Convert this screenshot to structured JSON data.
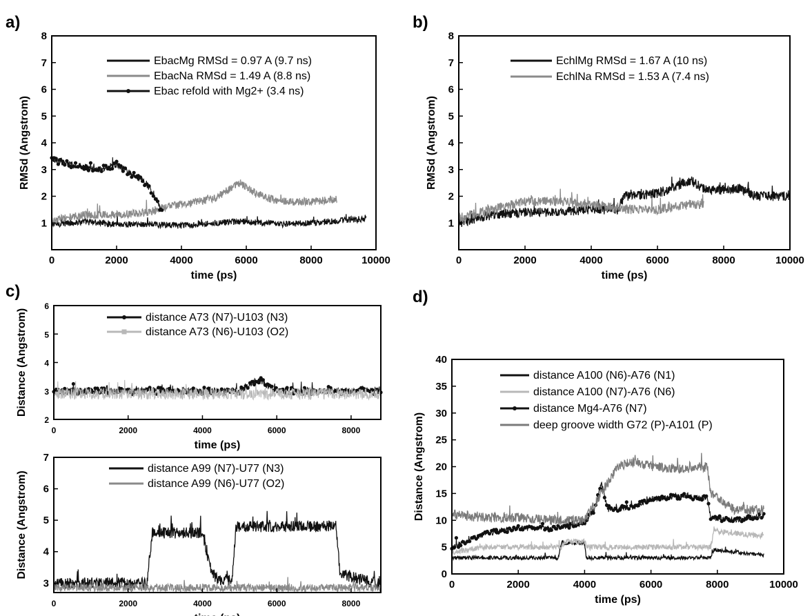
{
  "chart_data": [
    {
      "id": "a",
      "panel_label": "a)",
      "type": "line",
      "xlabel": "time (ps)",
      "ylabel": "RMSd (Angstrom)",
      "xlim": [
        0,
        10000
      ],
      "ylim": [
        0,
        8
      ],
      "xticks": [
        0,
        2000,
        4000,
        6000,
        8000,
        10000
      ],
      "yticks": [
        1,
        2,
        3,
        4,
        5,
        6,
        7,
        8
      ],
      "legend_position": "top-center",
      "series": [
        {
          "name": "EbacMg RMSd = 0.97 A   (9.7 ns)",
          "color": "#111111",
          "marker": "none",
          "noise": 0.12,
          "points": [
            [
              0,
              0.95
            ],
            [
              1000,
              1.05
            ],
            [
              2000,
              0.95
            ],
            [
              3000,
              0.95
            ],
            [
              4000,
              0.9
            ],
            [
              5000,
              1.0
            ],
            [
              6000,
              1.05
            ],
            [
              7000,
              0.95
            ],
            [
              8000,
              1.0
            ],
            [
              9000,
              1.1
            ],
            [
              9700,
              1.15
            ]
          ]
        },
        {
          "name": "EbacNa RMSd = 1.49 A (8.8 ns)",
          "color": "#8a8a8a",
          "marker": "none",
          "noise": 0.15,
          "points": [
            [
              0,
              1.1
            ],
            [
              1000,
              1.3
            ],
            [
              2000,
              1.3
            ],
            [
              3000,
              1.4
            ],
            [
              3500,
              1.6
            ],
            [
              4000,
              1.7
            ],
            [
              5000,
              1.9
            ],
            [
              5800,
              2.5
            ],
            [
              6300,
              2.1
            ],
            [
              7000,
              1.8
            ],
            [
              8000,
              1.8
            ],
            [
              8800,
              1.9
            ]
          ]
        },
        {
          "name": "Ebac refold with Mg2+  (3.4 ns)",
          "color": "#111111",
          "marker": "dot",
          "noise": 0.12,
          "points": [
            [
              0,
              3.4
            ],
            [
              500,
              3.2
            ],
            [
              1000,
              3.1
            ],
            [
              1500,
              3.0
            ],
            [
              2000,
              3.2
            ],
            [
              2500,
              2.8
            ],
            [
              2900,
              2.5
            ],
            [
              3200,
              2.0
            ],
            [
              3400,
              1.4
            ]
          ]
        }
      ]
    },
    {
      "id": "b",
      "panel_label": "b)",
      "type": "line",
      "xlabel": "time (ps)",
      "ylabel": "RMSd (Angstrom)",
      "xlim": [
        0,
        10000
      ],
      "ylim": [
        0,
        8
      ],
      "xticks": [
        0,
        2000,
        4000,
        6000,
        8000,
        10000
      ],
      "yticks": [
        1,
        2,
        3,
        4,
        5,
        6,
        7,
        8
      ],
      "legend_position": "top-center",
      "series": [
        {
          "name": "EchlMg RMSd = 1.67 A (10 ns)",
          "color": "#111111",
          "marker": "none",
          "noise": 0.18,
          "points": [
            [
              0,
              1.0
            ],
            [
              1000,
              1.3
            ],
            [
              2000,
              1.4
            ],
            [
              3000,
              1.4
            ],
            [
              4000,
              1.5
            ],
            [
              4800,
              1.5
            ],
            [
              5000,
              2.0
            ],
            [
              6000,
              2.1
            ],
            [
              7000,
              2.6
            ],
            [
              7500,
              2.2
            ],
            [
              8500,
              2.3
            ],
            [
              9000,
              2.0
            ],
            [
              10000,
              2.0
            ]
          ]
        },
        {
          "name": "EchlNa RMSd = 1.53 A (7.4 ns)",
          "color": "#8a8a8a",
          "marker": "none",
          "noise": 0.18,
          "points": [
            [
              0,
              1.2
            ],
            [
              1000,
              1.5
            ],
            [
              2000,
              1.8
            ],
            [
              3000,
              1.8
            ],
            [
              4000,
              1.7
            ],
            [
              5000,
              1.5
            ],
            [
              6000,
              1.5
            ],
            [
              7000,
              1.7
            ],
            [
              7400,
              1.7
            ]
          ]
        }
      ]
    },
    {
      "id": "c-top",
      "panel_label": "c)",
      "type": "line",
      "xlabel": "time (ps)",
      "ylabel": "Distance (Angstrom)",
      "xlim": [
        0,
        8800
      ],
      "ylim": [
        2,
        6
      ],
      "xticks": [
        0,
        2000,
        4000,
        6000,
        8000
      ],
      "yticks": [
        2,
        3,
        4,
        5,
        6
      ],
      "legend_position": "top-center",
      "series": [
        {
          "name": "distance A73 (N7)-U103 (N3)",
          "color": "#111111",
          "marker": "dot",
          "noise": 0.12,
          "points": [
            [
              0,
              3.0
            ],
            [
              1000,
              3.0
            ],
            [
              2000,
              3.0
            ],
            [
              3000,
              3.0
            ],
            [
              4000,
              3.0
            ],
            [
              5000,
              3.0
            ],
            [
              5500,
              3.4
            ],
            [
              6000,
              3.0
            ],
            [
              7000,
              3.0
            ],
            [
              8000,
              3.0
            ],
            [
              8800,
              3.0
            ]
          ]
        },
        {
          "name": "distance A73 (N6)-U103 (O2)",
          "color": "#b8b8b8",
          "marker": "square",
          "noise": 0.2,
          "points": [
            [
              0,
              2.9
            ],
            [
              1000,
              2.9
            ],
            [
              2000,
              2.9
            ],
            [
              3000,
              2.9
            ],
            [
              4000,
              2.9
            ],
            [
              5000,
              2.9
            ],
            [
              6000,
              2.9
            ],
            [
              7000,
              2.9
            ],
            [
              8000,
              2.9
            ],
            [
              8800,
              2.9
            ]
          ]
        }
      ]
    },
    {
      "id": "c-bottom",
      "panel_label": "",
      "type": "line",
      "xlabel": "time (ps)",
      "ylabel": "Distance (Angstrom)",
      "xlim": [
        0,
        8800
      ],
      "ylim": [
        2.7,
        7
      ],
      "xticks": [
        0,
        2000,
        4000,
        6000,
        8000
      ],
      "yticks": [
        3,
        4,
        5,
        6,
        7
      ],
      "legend_position": "top-center",
      "series": [
        {
          "name": "distance A99 (N7)-U77 (N3)",
          "color": "#111111",
          "marker": "none",
          "noise": 0.18,
          "points": [
            [
              0,
              3.0
            ],
            [
              2500,
              3.0
            ],
            [
              2650,
              4.6
            ],
            [
              4000,
              4.6
            ],
            [
              4200,
              3.5
            ],
            [
              4400,
              3.1
            ],
            [
              4800,
              3.1
            ],
            [
              4900,
              4.8
            ],
            [
              7600,
              4.8
            ],
            [
              7700,
              3.3
            ],
            [
              8800,
              2.95
            ]
          ]
        },
        {
          "name": "distance A99 (N6)-U77 (O2)",
          "color": "#8a8a8a",
          "marker": "none",
          "noise": 0.12,
          "points": [
            [
              0,
              2.85
            ],
            [
              2000,
              2.85
            ],
            [
              4000,
              2.85
            ],
            [
              6000,
              2.85
            ],
            [
              8000,
              2.85
            ],
            [
              8800,
              2.85
            ]
          ]
        }
      ]
    },
    {
      "id": "d",
      "panel_label": "d)",
      "type": "line",
      "xlabel": "time (ps)",
      "ylabel": "Distance (Angstrom)",
      "xlim": [
        0,
        10000
      ],
      "ylim": [
        0,
        40
      ],
      "xticks": [
        0,
        2000,
        4000,
        6000,
        8000,
        10000
      ],
      "yticks": [
        0,
        5,
        10,
        15,
        20,
        25,
        30,
        35,
        40
      ],
      "legend_position": "top-center",
      "series": [
        {
          "name": "distance A100 (N6)-A76 (N1)",
          "color": "#111111",
          "marker": "none",
          "noise": 0.35,
          "points": [
            [
              0,
              3.0
            ],
            [
              3200,
              3.0
            ],
            [
              3300,
              5.8
            ],
            [
              4000,
              5.8
            ],
            [
              4050,
              3.0
            ],
            [
              7800,
              3.0
            ],
            [
              7900,
              4.5
            ],
            [
              9400,
              3.5
            ]
          ]
        },
        {
          "name": "distance A100 (N7)-A76 (N6)",
          "color": "#b8b8b8",
          "marker": "none",
          "noise": 0.5,
          "points": [
            [
              0,
              4.0
            ],
            [
              1000,
              5.0
            ],
            [
              2000,
              5.0
            ],
            [
              3300,
              5.0
            ],
            [
              3400,
              6.0
            ],
            [
              4000,
              6.0
            ],
            [
              4100,
              5.0
            ],
            [
              7800,
              5.0
            ],
            [
              7900,
              8.0
            ],
            [
              9400,
              7.0
            ]
          ]
        },
        {
          "name": "distance Mg4-A76 (N7)",
          "color": "#111111",
          "marker": "dot",
          "noise": 0.5,
          "points": [
            [
              0,
              5.0
            ],
            [
              1000,
              7.5
            ],
            [
              2000,
              8.5
            ],
            [
              3000,
              8.5
            ],
            [
              4000,
              9.5
            ],
            [
              4300,
              12.0
            ],
            [
              4500,
              17.0
            ],
            [
              4700,
              12.0
            ],
            [
              5500,
              12.5
            ],
            [
              6000,
              14.0
            ],
            [
              7000,
              14.5
            ],
            [
              7700,
              14.0
            ],
            [
              7800,
              10.5
            ],
            [
              8500,
              10.0
            ],
            [
              9400,
              11.0
            ]
          ]
        },
        {
          "name": "deep groove width G72 (P)-A101 (P)",
          "color": "#7a7a7a",
          "marker": "none",
          "noise": 0.9,
          "points": [
            [
              0,
              11.0
            ],
            [
              1000,
              10.5
            ],
            [
              2000,
              10.5
            ],
            [
              3000,
              10.0
            ],
            [
              4000,
              10.0
            ],
            [
              4400,
              14.0
            ],
            [
              5000,
              20.0
            ],
            [
              5500,
              21.0
            ],
            [
              6000,
              20.0
            ],
            [
              7000,
              19.5
            ],
            [
              7700,
              20.0
            ],
            [
              7800,
              15.0
            ],
            [
              8500,
              12.0
            ],
            [
              9400,
              12.0
            ]
          ]
        }
      ]
    }
  ]
}
